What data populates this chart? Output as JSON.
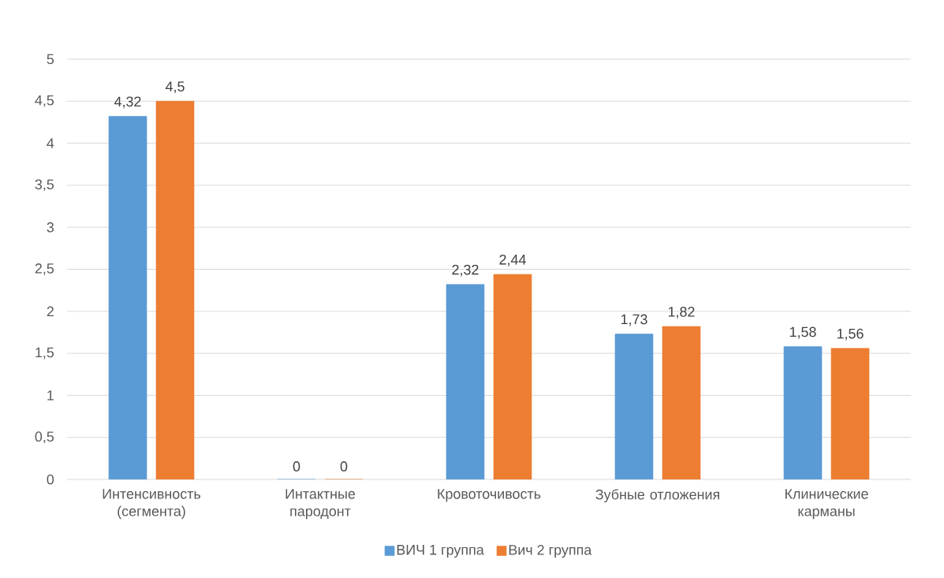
{
  "chart_data": {
    "type": "bar",
    "categories": [
      "Интенсивность (сегмента)",
      "Интактные пародонт",
      "Кровоточивость",
      "Зубные отложения",
      "Клинические карманы"
    ],
    "series": [
      {
        "name": "ВИЧ 1 группа",
        "color": "#5b9bd5",
        "values": [
          4.32,
          0,
          2.32,
          1.73,
          1.58
        ],
        "value_labels": [
          "4,32",
          "0",
          "2,32",
          "1,73",
          "1,58"
        ]
      },
      {
        "name": "Вич 2 группа",
        "color": "#ed7d31",
        "values": [
          4.5,
          0,
          2.44,
          1.82,
          1.56
        ],
        "value_labels": [
          "4,5",
          "0",
          "2,44",
          "1,82",
          "1,56"
        ]
      }
    ],
    "ylim": [
      0,
      5
    ],
    "yticks": [
      0,
      {
        "value": 0.5,
        "label": "0,5"
      },
      1,
      {
        "value": 1.5,
        "label": "1,5"
      },
      2,
      {
        "value": 2.5,
        "label": "2,5"
      },
      3,
      {
        "value": 3.5,
        "label": "3,5"
      },
      4,
      {
        "value": 4.5,
        "label": "4,5"
      },
      5
    ],
    "grid": "y",
    "legend": "bottom"
  }
}
